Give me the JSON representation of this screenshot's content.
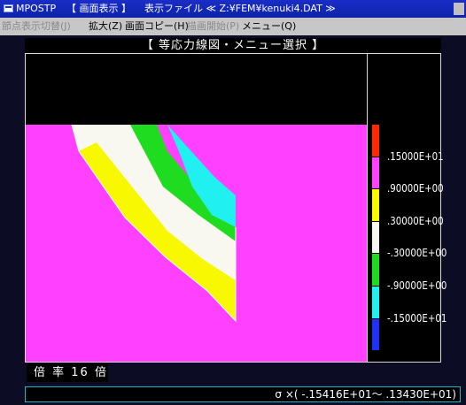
{
  "window": {
    "app_name": "MPOSTP",
    "mode": "【 画面表示 】",
    "file_info": "表示ファイル ≪ Z:¥FEM¥kenuki4.DAT ≫"
  },
  "menu": {
    "items": [
      {
        "label": "節点表示切替(J)",
        "enabled": false
      },
      {
        "label": "拡大(Z)",
        "enabled": true
      },
      {
        "label": "画面コピー(H)",
        "enabled": true
      },
      {
        "label": "描画開始(P)",
        "enabled": false
      },
      {
        "label": "メニュー(Q)",
        "enabled": true
      }
    ]
  },
  "banner": {
    "title": "【 等応力線図・メニュー選択 】"
  },
  "legend": {
    "labels": [
      ".15000E+01",
      ".90000E+00",
      ".30000E+00",
      "-.30000E+00",
      "-.90000E+00",
      "-.15000E+01"
    ],
    "colors": [
      "#ff2800",
      "#ff40ff",
      "#f8f800",
      "#f8f8f0",
      "#20dc20",
      "#20f0f0",
      "#2030f8"
    ]
  },
  "plot": {
    "background_color": "#ff40ff",
    "upper_color": "#000000",
    "stripe_colors": [
      "#f8f8f0",
      "#f8f800",
      "#f8f8f0",
      "#20dc20",
      "#20f0f0"
    ]
  },
  "scale": {
    "label": "倍 率 16 倍"
  },
  "status": {
    "text": "σ ×( -.15416E+01～  .13430E+01)"
  }
}
